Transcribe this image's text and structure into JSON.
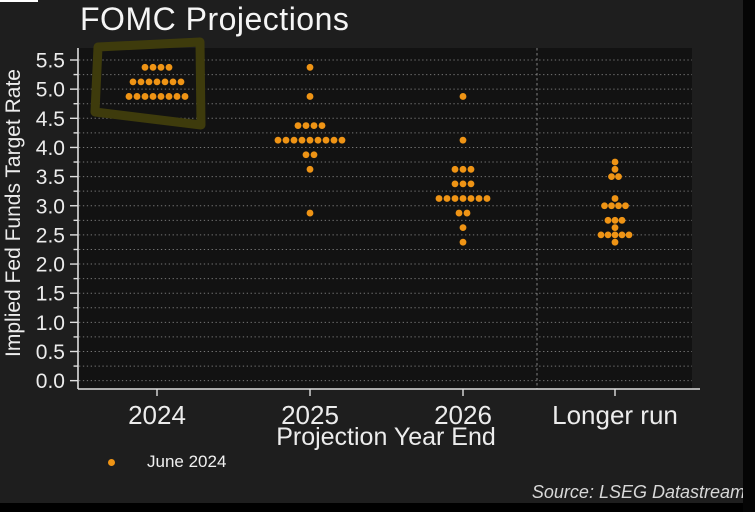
{
  "chart_data": {
    "type": "scatter",
    "subtype": "fomc-dot-plot",
    "title": "FOMC Projections",
    "xlabel": "Projection Year End",
    "ylabel": "Implied Fed Funds Target Rate",
    "categories": [
      "2024",
      "2025",
      "2026",
      "Longer run"
    ],
    "ylim": [
      0.0,
      5.5
    ],
    "ytick_step": 0.5,
    "ytick_labels": [
      "0.0",
      "0.5",
      "1.0",
      "1.5",
      "2.0",
      "2.5",
      "3.0",
      "3.5",
      "4.0",
      "4.5",
      "5.0",
      "5.5"
    ],
    "grid": {
      "horizontal": true,
      "step": 0.25,
      "style": "dotted"
    },
    "separator_before_category": "Longer run",
    "legend": {
      "entries": [
        "June 2024"
      ],
      "position": "bottom-left"
    },
    "series": [
      {
        "name": "June 2024",
        "dots": [
          {
            "category": "2024",
            "rate": 5.375,
            "count": 4
          },
          {
            "category": "2024",
            "rate": 5.125,
            "count": 7
          },
          {
            "category": "2024",
            "rate": 4.875,
            "count": 8
          },
          {
            "category": "2025",
            "rate": 5.375,
            "count": 1
          },
          {
            "category": "2025",
            "rate": 4.875,
            "count": 1
          },
          {
            "category": "2025",
            "rate": 4.375,
            "count": 4
          },
          {
            "category": "2025",
            "rate": 4.125,
            "count": 9
          },
          {
            "category": "2025",
            "rate": 3.875,
            "count": 2
          },
          {
            "category": "2025",
            "rate": 3.625,
            "count": 1
          },
          {
            "category": "2025",
            "rate": 2.875,
            "count": 1
          },
          {
            "category": "2026",
            "rate": 4.875,
            "count": 1
          },
          {
            "category": "2026",
            "rate": 4.125,
            "count": 1
          },
          {
            "category": "2026",
            "rate": 3.625,
            "count": 3
          },
          {
            "category": "2026",
            "rate": 3.375,
            "count": 3
          },
          {
            "category": "2026",
            "rate": 3.125,
            "count": 7
          },
          {
            "category": "2026",
            "rate": 2.875,
            "count": 2
          },
          {
            "category": "2026",
            "rate": 2.625,
            "count": 1
          },
          {
            "category": "2026",
            "rate": 2.375,
            "count": 1
          },
          {
            "category": "Longer run",
            "rate": 3.75,
            "count": 1
          },
          {
            "category": "Longer run",
            "rate": 3.625,
            "count": 1
          },
          {
            "category": "Longer run",
            "rate": 3.5,
            "count": 2
          },
          {
            "category": "Longer run",
            "rate": 3.125,
            "count": 1
          },
          {
            "category": "Longer run",
            "rate": 3.0,
            "count": 4
          },
          {
            "category": "Longer run",
            "rate": 2.75,
            "count": 3
          },
          {
            "category": "Longer run",
            "rate": 2.625,
            "count": 1
          },
          {
            "category": "Longer run",
            "rate": 2.5,
            "count": 5
          },
          {
            "category": "Longer run",
            "rate": 2.375,
            "count": 1
          }
        ]
      }
    ],
    "annotations": [
      {
        "type": "hand-drawn-highlight-box",
        "around": "2024 column dots",
        "color": "#3e3b0c"
      }
    ]
  },
  "legend": {
    "label": "June 2024"
  },
  "source": {
    "text": "Source: LSEG Datastream"
  },
  "colors": {
    "dot": "#ef9415",
    "background": "#1e1e1e",
    "plot_background": "#121212",
    "grid": "#767676",
    "axis": "#dedede",
    "text": "#ececec",
    "highlight": "#3e3b0c"
  }
}
